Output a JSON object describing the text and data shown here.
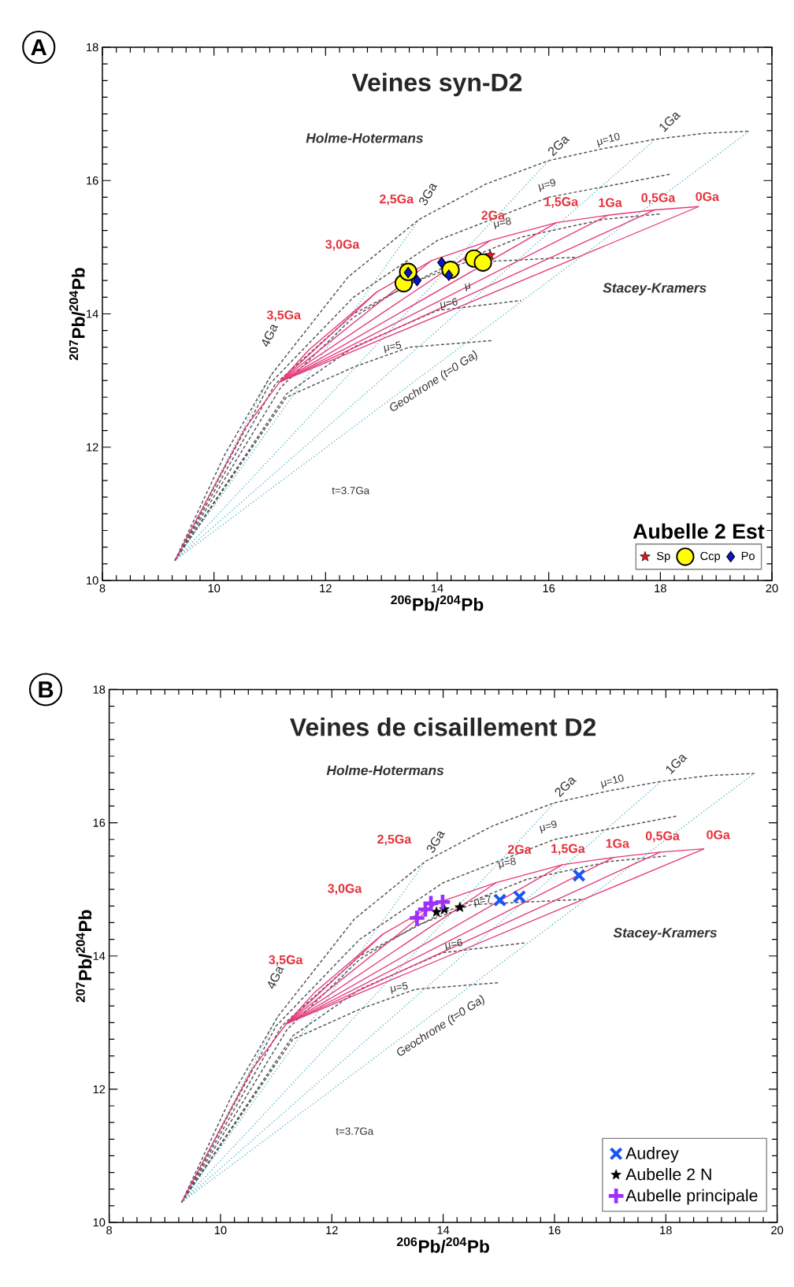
{
  "chart_data": [
    {
      "type": "scatter",
      "title": "Veines syn-D2",
      "xlabel": "$^{206}$Pb/$^{204}$Pb",
      "ylabel": "$^{207}$Pb/$^{204}$Pb",
      "legend_title": "Aubelle 2 Est",
      "legend": "bottom right",
      "xlim": [
        8,
        20
      ],
      "ylim": [
        10,
        18
      ],
      "xticks": [
        8,
        10,
        12,
        14,
        16,
        18,
        20
      ],
      "yticks": [
        10,
        12,
        14,
        16,
        18
      ],
      "annotations": [
        "A",
        "Holme-Hotermans",
        "Stacey-Kramers",
        "3,0Ga",
        "3,5Ga",
        "2,5Ga",
        "2Ga",
        "1,5Ga",
        "1Ga",
        "0,5Ga",
        "0Ga",
        "2Ga",
        "1Ga",
        "3Ga",
        "4Ga",
        "μ=10",
        "μ=9",
        "μ=8",
        "μ",
        "μ=6",
        "μ=5",
        "Geochrone (t=0 Ga)",
        "t=3.7Ga"
      ],
      "series": [
        {
          "type": "line",
          "line_style": "dotted",
          "color": "#4fb8c0",
          "x": [
            9.3,
            11.03
          ],
          "values": [
            10.3,
            13.09
          ]
        },
        {
          "type": "line",
          "line_style": "dotted",
          "color": "#4fb8c0",
          "x": [
            9.3,
            13.68
          ],
          "values": [
            10.3,
            15.42
          ]
        },
        {
          "type": "line",
          "line_style": "dotted",
          "color": "#4fb8c0",
          "x": [
            9.3,
            16.0
          ],
          "values": [
            10.3,
            16.3
          ]
        },
        {
          "type": "line",
          "line_style": "dotted",
          "color": "#4fb8c0",
          "x": [
            9.3,
            17.91
          ],
          "values": [
            10.3,
            16.62
          ]
        },
        {
          "type": "line",
          "line_style": "dotted",
          "color": "#4fb8c0",
          "x": [
            9.3,
            19.59
          ],
          "values": [
            10.3,
            16.74
          ]
        },
        {
          "type": "line",
          "line_style": "dashed",
          "color": "#555555",
          "x": [
            9.3,
            11.3,
            12.5,
            13.5,
            15.0
          ],
          "values": [
            10.3,
            12.75,
            13.2,
            13.5,
            13.6
          ]
        },
        {
          "type": "line",
          "line_style": "dashed",
          "color": "#555555",
          "x": [
            9.3,
            11.3,
            12.5,
            14.0,
            15.5
          ],
          "values": [
            10.3,
            12.8,
            13.5,
            14.05,
            14.2
          ]
        },
        {
          "type": "line",
          "line_style": "dashed",
          "color": "#555555",
          "x": [
            9.3,
            11.2,
            12.5,
            13.5,
            14.5,
            16.5
          ],
          "values": [
            10.3,
            12.9,
            13.95,
            14.45,
            14.77,
            14.85
          ]
        },
        {
          "type": "line",
          "line_style": "dashed",
          "color": "#555555",
          "x": [
            9.3,
            11.1,
            12.5,
            14.0,
            15.5,
            17.0,
            18.0
          ],
          "values": [
            10.3,
            12.95,
            14.0,
            14.65,
            15.15,
            15.42,
            15.5
          ]
        },
        {
          "type": "line",
          "line_style": "dashed",
          "color": "#555555",
          "x": [
            9.3,
            11.0,
            12.5,
            14.0,
            16.0,
            18.2
          ],
          "values": [
            10.3,
            12.95,
            14.25,
            15.1,
            15.75,
            16.1
          ]
        },
        {
          "type": "line",
          "line_style": "dashed",
          "color": "#555555",
          "x": [
            9.3,
            10.2,
            11.03,
            12.4,
            13.68,
            14.88,
            16.0,
            16.98,
            17.91,
            18.8,
            19.59
          ],
          "values": [
            10.3,
            11.9,
            13.09,
            14.55,
            15.42,
            15.95,
            16.3,
            16.48,
            16.62,
            16.71,
            16.74
          ]
        },
        {
          "type": "line",
          "line_style": "solid",
          "color": "#e5397a",
          "x": [
            11.18,
            12.92
          ],
          "values": [
            12.98,
            14.33
          ]
        },
        {
          "type": "line",
          "line_style": "solid",
          "color": "#e5397a",
          "x": [
            11.18,
            13.9
          ],
          "values": [
            12.98,
            14.8
          ]
        },
        {
          "type": "line",
          "line_style": "solid",
          "color": "#e5397a",
          "x": [
            11.18,
            14.95
          ],
          "values": [
            12.98,
            15.1
          ]
        },
        {
          "type": "line",
          "line_style": "solid",
          "color": "#e5397a",
          "x": [
            11.18,
            16.14
          ],
          "values": [
            12.98,
            15.37
          ]
        },
        {
          "type": "line",
          "line_style": "solid",
          "color": "#e5397a",
          "x": [
            11.18,
            17.06
          ],
          "values": [
            12.98,
            15.48
          ]
        },
        {
          "type": "line",
          "line_style": "solid",
          "color": "#e5397a",
          "x": [
            11.18,
            17.9
          ],
          "values": [
            12.98,
            15.56
          ]
        },
        {
          "type": "line",
          "line_style": "solid",
          "color": "#e5397a",
          "x": [
            11.18,
            18.69
          ],
          "values": [
            12.98,
            15.61
          ]
        },
        {
          "type": "line",
          "line_style": "solid",
          "color": "#e5397a",
          "x": [
            9.3,
            10.56,
            11.18,
            11.7,
            12.92,
            13.9,
            14.95,
            16.14,
            17.06,
            17.9,
            18.69
          ],
          "values": [
            10.3,
            12.29,
            12.98,
            13.46,
            14.33,
            14.8,
            15.1,
            15.37,
            15.48,
            15.56,
            15.61
          ]
        },
        {
          "name": "Sp",
          "marker": "star",
          "color": "#e0161e",
          "x": [
            14.95
          ],
          "values": [
            14.88
          ]
        },
        {
          "name": "Ccp",
          "marker": "circle",
          "color": "#ffff00",
          "x": [
            13.4,
            13.48,
            14.24,
            14.66,
            14.82
          ],
          "values": [
            14.46,
            14.63,
            14.66,
            14.83,
            14.77
          ]
        },
        {
          "name": "Po",
          "marker": "diamond",
          "color": "#0a14c8",
          "x": [
            13.48,
            13.64,
            14.08,
            14.21
          ],
          "values": [
            14.62,
            14.5,
            14.77,
            14.58
          ]
        }
      ]
    },
    {
      "type": "scatter",
      "title": "Veines de cisaillement D2",
      "xlabel": "$^{206}$Pb/$^{204}$Pb",
      "ylabel": "$^{207}$Pb/$^{204}$Pb",
      "legend": "bottom right",
      "xlim": [
        8,
        20
      ],
      "ylim": [
        10,
        18
      ],
      "xticks": [
        8,
        10,
        12,
        14,
        16,
        18,
        20
      ],
      "yticks": [
        10,
        12,
        14,
        16,
        18
      ],
      "annotations": [
        "B",
        "Holme-Hotermans",
        "Stacey-Kramers",
        "3,0Ga",
        "3,5Ga",
        "2,5Ga",
        "2Ga",
        "1,5Ga",
        "1Ga",
        "0,5Ga",
        "0Ga",
        "2Ga",
        "1Ga",
        "3Ga",
        "4Ga",
        "μ=10",
        "μ=9",
        "μ=8",
        "μ=7",
        "μ=6",
        "μ=5",
        "Geochrone (t=0 Ga)",
        "t=3.7Ga"
      ],
      "series": [
        {
          "type": "line",
          "line_style": "dotted",
          "color": "#4fb8c0",
          "x": [
            9.3,
            11.03
          ],
          "values": [
            10.3,
            13.09
          ]
        },
        {
          "type": "line",
          "line_style": "dotted",
          "color": "#4fb8c0",
          "x": [
            9.3,
            13.68
          ],
          "values": [
            10.3,
            15.42
          ]
        },
        {
          "type": "line",
          "line_style": "dotted",
          "color": "#4fb8c0",
          "x": [
            9.3,
            16.0
          ],
          "values": [
            10.3,
            16.3
          ]
        },
        {
          "type": "line",
          "line_style": "dotted",
          "color": "#4fb8c0",
          "x": [
            9.3,
            17.91
          ],
          "values": [
            10.3,
            16.62
          ]
        },
        {
          "type": "line",
          "line_style": "dotted",
          "color": "#4fb8c0",
          "x": [
            9.3,
            19.59
          ],
          "values": [
            10.3,
            16.74
          ]
        },
        {
          "type": "line",
          "line_style": "dashed",
          "color": "#555555",
          "x": [
            9.3,
            11.3,
            12.5,
            13.5,
            15.0
          ],
          "values": [
            10.3,
            12.75,
            13.2,
            13.5,
            13.6
          ]
        },
        {
          "type": "line",
          "line_style": "dashed",
          "color": "#555555",
          "x": [
            9.3,
            11.3,
            12.5,
            14.0,
            15.5
          ],
          "values": [
            10.3,
            12.8,
            13.5,
            14.05,
            14.2
          ]
        },
        {
          "type": "line",
          "line_style": "dashed",
          "color": "#555555",
          "x": [
            9.3,
            11.2,
            12.5,
            13.5,
            14.5,
            16.5
          ],
          "values": [
            10.3,
            12.9,
            13.95,
            14.45,
            14.77,
            14.85
          ]
        },
        {
          "type": "line",
          "line_style": "dashed",
          "color": "#555555",
          "x": [
            9.3,
            11.1,
            12.5,
            14.0,
            15.5,
            17.0,
            18.0
          ],
          "values": [
            10.3,
            12.95,
            14.0,
            14.65,
            15.15,
            15.42,
            15.5
          ]
        },
        {
          "type": "line",
          "line_style": "dashed",
          "color": "#555555",
          "x": [
            9.3,
            11.0,
            12.5,
            14.0,
            16.0,
            18.2
          ],
          "values": [
            10.3,
            12.95,
            14.25,
            15.1,
            15.75,
            16.1
          ]
        },
        {
          "type": "line",
          "line_style": "dashed",
          "color": "#555555",
          "x": [
            9.3,
            10.2,
            11.03,
            12.4,
            13.68,
            14.88,
            16.0,
            16.98,
            17.91,
            18.8,
            19.59
          ],
          "values": [
            10.3,
            11.9,
            13.09,
            14.55,
            15.42,
            15.95,
            16.3,
            16.48,
            16.62,
            16.71,
            16.74
          ]
        },
        {
          "type": "line",
          "line_style": "solid",
          "color": "#e5397a",
          "x": [
            11.18,
            12.92
          ],
          "values": [
            12.98,
            14.33
          ]
        },
        {
          "type": "line",
          "line_style": "solid",
          "color": "#e5397a",
          "x": [
            11.18,
            13.9
          ],
          "values": [
            12.98,
            14.8
          ]
        },
        {
          "type": "line",
          "line_style": "solid",
          "color": "#e5397a",
          "x": [
            11.18,
            14.95
          ],
          "values": [
            12.98,
            15.1
          ]
        },
        {
          "type": "line",
          "line_style": "solid",
          "color": "#e5397a",
          "x": [
            11.18,
            16.14
          ],
          "values": [
            12.98,
            15.37
          ]
        },
        {
          "type": "line",
          "line_style": "solid",
          "color": "#e5397a",
          "x": [
            11.18,
            17.06
          ],
          "values": [
            12.98,
            15.48
          ]
        },
        {
          "type": "line",
          "line_style": "solid",
          "color": "#e5397a",
          "x": [
            11.18,
            17.9
          ],
          "values": [
            12.98,
            15.56
          ]
        },
        {
          "type": "line",
          "line_style": "solid",
          "color": "#e5397a",
          "x": [
            11.18,
            18.69
          ],
          "values": [
            12.98,
            15.61
          ]
        },
        {
          "type": "line",
          "line_style": "solid",
          "color": "#e5397a",
          "x": [
            9.3,
            10.56,
            11.18,
            11.7,
            12.92,
            13.9,
            14.95,
            16.14,
            17.06,
            17.9,
            18.69
          ],
          "values": [
            10.3,
            12.29,
            12.98,
            13.46,
            14.33,
            14.8,
            15.1,
            15.37,
            15.48,
            15.56,
            15.61
          ]
        },
        {
          "name": "Audrey",
          "marker": "cross",
          "color": "#1a56f0",
          "x": [
            15.02,
            15.37,
            16.44
          ],
          "values": [
            14.84,
            14.89,
            15.21
          ]
        },
        {
          "name": "Aubelle 2 N",
          "marker": "star",
          "color": "#000000",
          "x": [
            13.88,
            14.02,
            14.3
          ],
          "values": [
            14.66,
            14.7,
            14.73
          ]
        },
        {
          "name": "Aubelle principale",
          "marker": "plus",
          "color": "#9b30ff",
          "x": [
            13.53,
            13.68,
            13.78,
            13.99
          ],
          "values": [
            14.57,
            14.7,
            14.79,
            14.81
          ]
        }
      ]
    }
  ]
}
